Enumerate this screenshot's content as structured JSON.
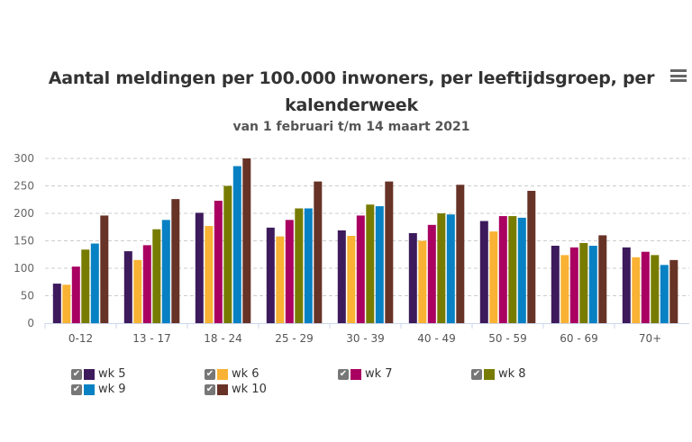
{
  "chart_data": {
    "type": "bar",
    "title": "Aantal meldingen per 100.000 inwoners, per leeftijdsgroep, per kalenderweek",
    "subtitle": "van 1 februari t/m 14 maart 2021",
    "categories": [
      "0-12",
      "13 - 17",
      "18 - 24",
      "25 - 29",
      "30 - 39",
      "40 - 49",
      "50 - 59",
      "60 - 69",
      "70+"
    ],
    "yticks": [
      "0",
      "50",
      "100",
      "150",
      "200",
      "250",
      "300"
    ],
    "ylim": [
      0,
      300
    ],
    "grid": true,
    "legend": "bottom",
    "series": [
      {
        "name": "wk 5",
        "color": "#3d1a5c",
        "values": [
          72,
          131,
          201,
          174,
          169,
          164,
          186,
          141,
          138
        ]
      },
      {
        "name": "wk 6",
        "color": "#f9b233",
        "values": [
          70,
          115,
          177,
          158,
          159,
          150,
          167,
          124,
          120
        ]
      },
      {
        "name": "wk 7",
        "color": "#a90061",
        "values": [
          103,
          142,
          223,
          188,
          196,
          179,
          195,
          138,
          130
        ]
      },
      {
        "name": "wk 8",
        "color": "#777c00",
        "values": [
          134,
          171,
          250,
          209,
          216,
          200,
          195,
          146,
          124
        ]
      },
      {
        "name": "wk 9",
        "color": "#0781c3",
        "values": [
          145,
          188,
          286,
          209,
          213,
          198,
          192,
          141,
          106
        ]
      },
      {
        "name": "wk 10",
        "color": "#673327",
        "values": [
          196,
          226,
          300,
          258,
          258,
          252,
          241,
          160,
          115
        ]
      }
    ]
  },
  "menu_icon": "hamburger-menu-icon",
  "legend_check": "✔"
}
